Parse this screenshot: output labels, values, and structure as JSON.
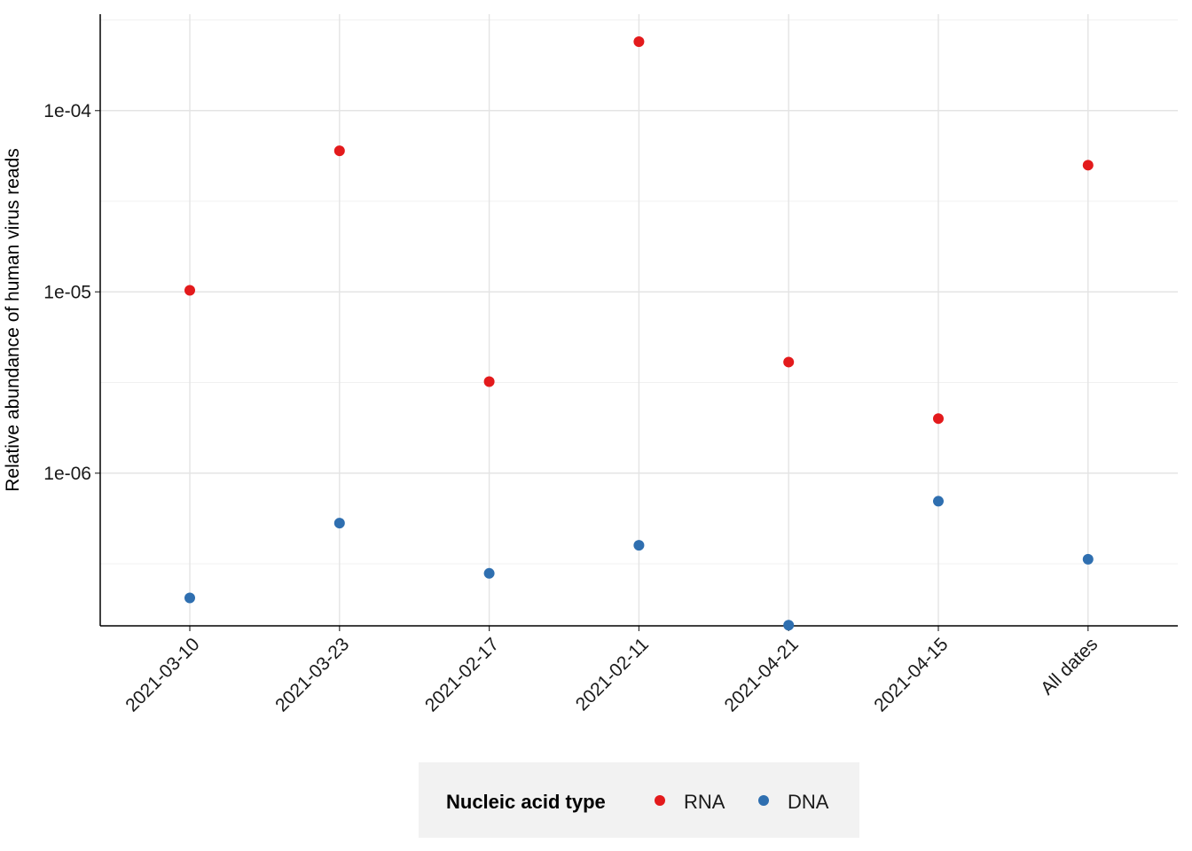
{
  "chart_data": {
    "type": "scatter",
    "categories": [
      "2021-03-10",
      "2021-03-23",
      "2021-02-17",
      "2021-02-11",
      "2021-04-21",
      "2021-04-15",
      "All dates"
    ],
    "series": [
      {
        "name": "RNA",
        "color": "#e31a1c",
        "values": [
          1.02e-05,
          6e-05,
          3.2e-06,
          0.00024,
          4.1e-06,
          2e-06,
          5e-05
        ]
      },
      {
        "name": "DNA",
        "color": "#2f6fb0",
        "values": [
          2.05e-07,
          5.3e-07,
          2.8e-07,
          4e-07,
          1.45e-07,
          7e-07,
          3.35e-07
        ]
      }
    ],
    "ylabel": "Relative abundance of human virus reads",
    "xlabel": "",
    "y_scale": "log10",
    "ylim": [
      1.45e-07,
      0.00032
    ],
    "y_ticks": [
      1e-06,
      1e-05,
      0.0001
    ],
    "y_tick_labels": [
      "1e-06",
      "1e-05",
      "1e-04"
    ],
    "grid": true,
    "legend": {
      "title": "Nucleic acid type",
      "position": "bottom"
    }
  }
}
